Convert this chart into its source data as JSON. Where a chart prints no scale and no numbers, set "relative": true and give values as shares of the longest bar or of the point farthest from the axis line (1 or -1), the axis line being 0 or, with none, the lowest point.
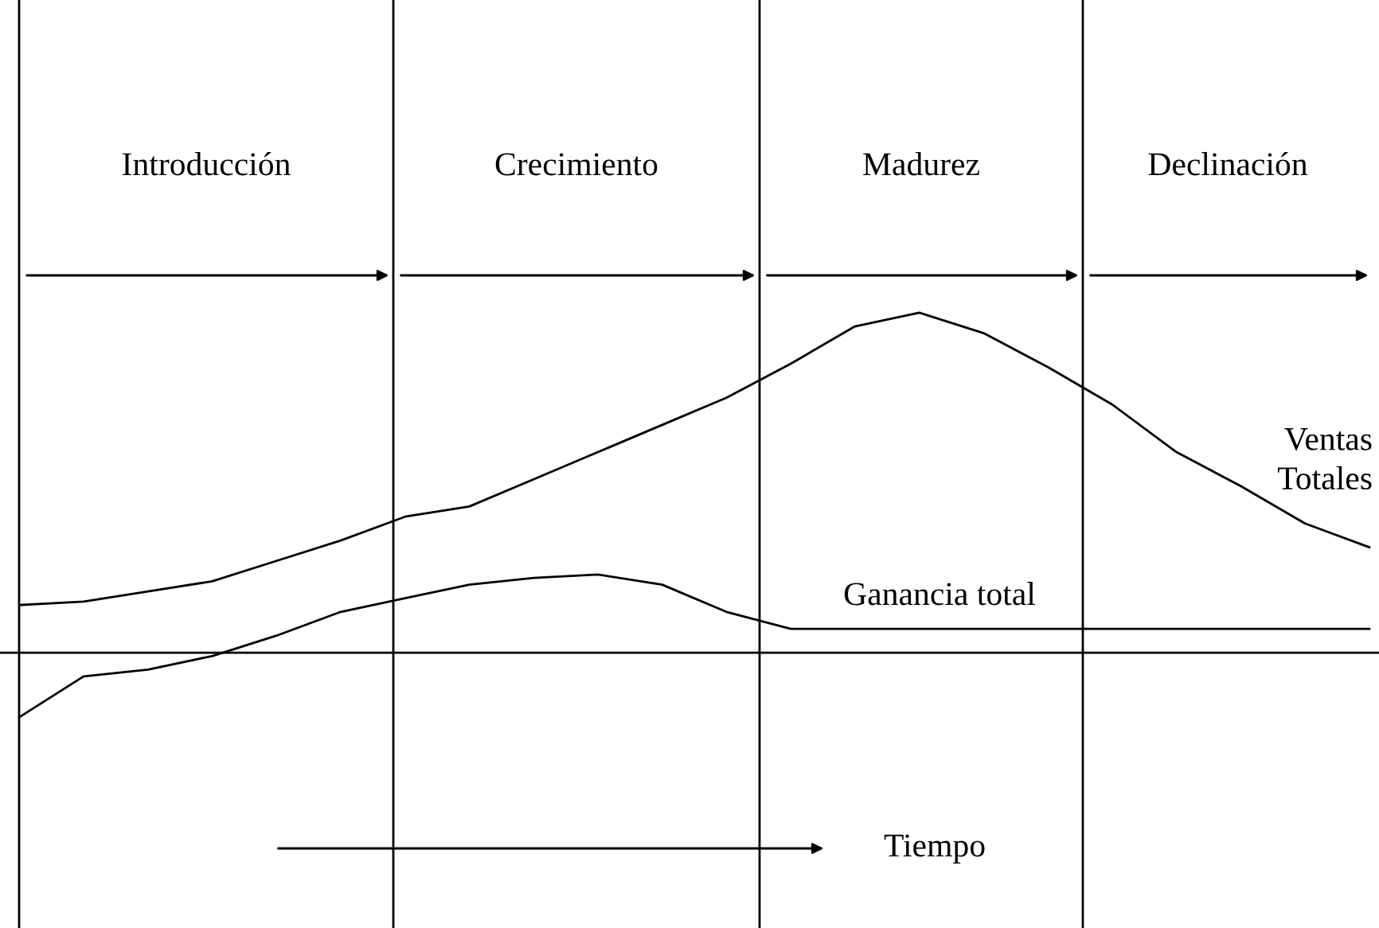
{
  "chart_data": {
    "type": "line",
    "relative": true,
    "marker": "none",
    "line_style": "solid",
    "categories": [
      null,
      null,
      null,
      null,
      null,
      null,
      null,
      null,
      null,
      null,
      null,
      null,
      null,
      null,
      null,
      null,
      null,
      null,
      null,
      null,
      null,
      null
    ],
    "series": [
      {
        "name": "Ventas Totales",
        "color": "#000000",
        "values": [
          0.14,
          0.15,
          0.18,
          0.21,
          0.27,
          0.33,
          0.4,
          0.43,
          0.51,
          0.59,
          0.67,
          0.75,
          0.85,
          0.96,
          1.0,
          0.94,
          0.84,
          0.73,
          0.59,
          0.49,
          0.38,
          0.31
        ]
      },
      {
        "name": "Ganancia total",
        "color": "#000000",
        "values": [
          -0.19,
          -0.07,
          -0.05,
          -0.01,
          0.05,
          0.12,
          0.16,
          0.2,
          0.22,
          0.23,
          0.2,
          0.12,
          0.07,
          0.07,
          0.07,
          0.07,
          0.07,
          0.07,
          0.07,
          0.07,
          0.07,
          0.07
        ]
      }
    ],
    "annotations": [
      "Introducción",
      "Crecimiento",
      "Madurez",
      "Declinación",
      "Tiempo"
    ]
  }
}
